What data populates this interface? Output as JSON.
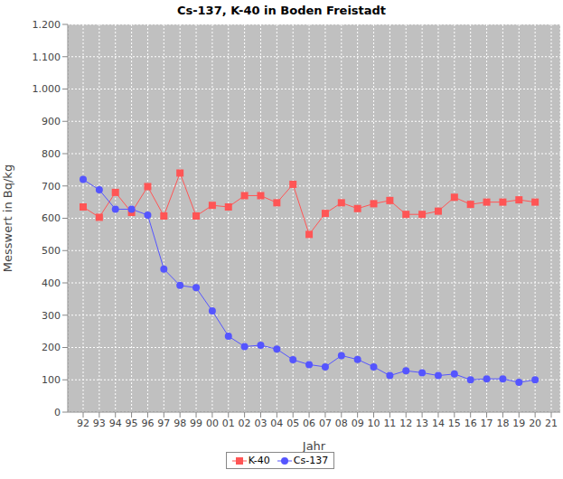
{
  "chart_data": {
    "type": "line",
    "title": "Cs-137, K-40 in Boden Freistadt",
    "x_label": "Jahr",
    "y_label": "Messwert in Bq/kg",
    "categories": [
      "92",
      "93",
      "94",
      "95",
      "96",
      "97",
      "98",
      "99",
      "00",
      "01",
      "02",
      "03",
      "04",
      "05",
      "06",
      "07",
      "08",
      "09",
      "10",
      "11",
      "12",
      "13",
      "14",
      "15",
      "16",
      "17",
      "18",
      "19",
      "20",
      "21"
    ],
    "series": [
      {
        "name": "K-40",
        "color": "#ff5555",
        "marker": "square",
        "values": [
          635,
          603,
          680,
          618,
          698,
          607,
          740,
          607,
          640,
          635,
          670,
          670,
          648,
          705,
          550,
          615,
          648,
          630,
          645,
          655,
          612,
          612,
          622,
          665,
          643,
          650,
          650,
          657,
          650,
          null
        ]
      },
      {
        "name": "Cs-137",
        "color": "#5555ff",
        "marker": "circle",
        "values": [
          720,
          688,
          628,
          628,
          610,
          443,
          392,
          385,
          313,
          235,
          203,
          207,
          195,
          162,
          147,
          140,
          175,
          163,
          140,
          113,
          128,
          122,
          113,
          118,
          100,
          103,
          103,
          92,
          100,
          null
        ]
      }
    ],
    "ylim": [
      0,
      1200
    ],
    "yticks": [
      0,
      100,
      200,
      300,
      400,
      500,
      600,
      700,
      800,
      900,
      {
        "value": 1000,
        "label": "1.000"
      },
      {
        "value": 1100,
        "label": "1.100"
      },
      {
        "value": 1200,
        "label": "1.200"
      }
    ],
    "grid": true,
    "legend": "bottom"
  }
}
